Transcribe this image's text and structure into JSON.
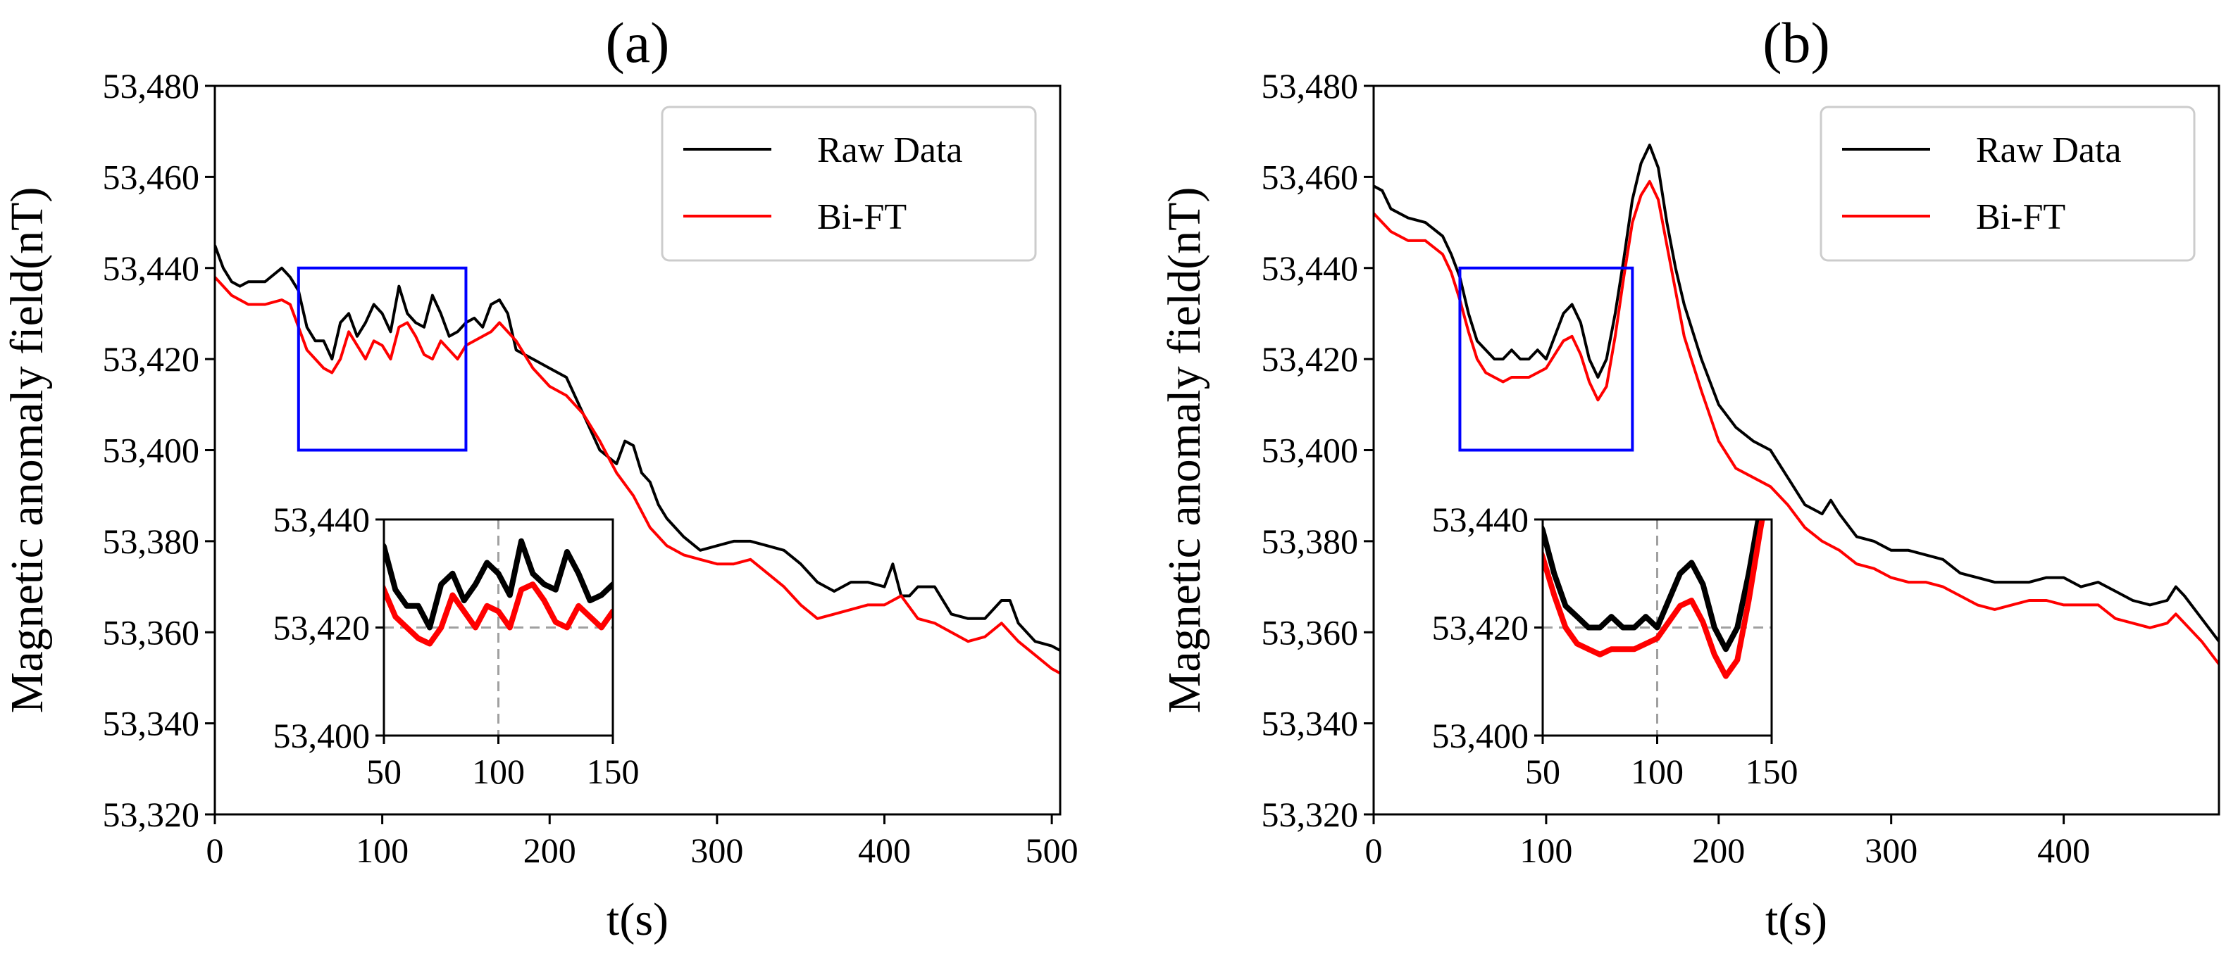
{
  "figure": {
    "description_free": true
  },
  "chart_data": [
    {
      "type": "line",
      "panel_label": "(a)",
      "xlabel": "t(s)",
      "ylabel": "Magnetic anomaly field(nT)",
      "xlim": [
        0,
        505
      ],
      "ylim": [
        53320,
        53480
      ],
      "xticks": [
        0,
        100,
        200,
        300,
        400,
        500
      ],
      "yticks": [
        53320,
        53340,
        53360,
        53380,
        53400,
        53420,
        53440,
        53460,
        53480
      ],
      "ytick_labels": [
        "53,320",
        "53,340",
        "53,360",
        "53,380",
        "53,400",
        "53,420",
        "53,440",
        "53,460",
        "53,480"
      ],
      "legend": {
        "position": "top-right",
        "entries": [
          "Raw Data",
          "Bi-FT"
        ]
      },
      "colors": {
        "raw": "#000000",
        "filtered": "#ff0000",
        "zoom_box": "#0000ff",
        "inset_grid": "#a0a0a0"
      },
      "series": [
        {
          "name": "Raw Data",
          "x": [
            0,
            5,
            10,
            15,
            20,
            30,
            40,
            45,
            50,
            55,
            60,
            65,
            70,
            75,
            80,
            85,
            90,
            95,
            100,
            105,
            110,
            115,
            120,
            125,
            130,
            135,
            140,
            145,
            150,
            155,
            160,
            165,
            170,
            175,
            180,
            190,
            200,
            210,
            220,
            230,
            240,
            245,
            250,
            255,
            260,
            265,
            270,
            280,
            290,
            300,
            310,
            320,
            330,
            340,
            350,
            360,
            370,
            380,
            390,
            400,
            405,
            410,
            415,
            420,
            430,
            440,
            450,
            460,
            470,
            475,
            480,
            490,
            500,
            505
          ],
          "values": [
            53445,
            53440,
            53437,
            53436,
            53437,
            53437,
            53440,
            53438,
            53435,
            53427,
            53424,
            53424,
            53420,
            53428,
            53430,
            53425,
            53428,
            53432,
            53430,
            53426,
            53436,
            53430,
            53428,
            53427,
            53434,
            53430,
            53425,
            53426,
            53428,
            53429,
            53427,
            53432,
            53433,
            53430,
            53422,
            53420,
            53418,
            53416,
            53408,
            53400,
            53397,
            53402,
            53401,
            53395,
            53393,
            53388,
            53385,
            53381,
            53378,
            53379,
            53380,
            53380,
            53379,
            53378,
            53375,
            53371,
            53369,
            53371,
            53371,
            53370,
            53375,
            53368,
            53368,
            53370,
            53370,
            53364,
            53363,
            53363,
            53367,
            53367,
            53362,
            53358,
            53357,
            53356
          ]
        },
        {
          "name": "Bi-FT",
          "x": [
            0,
            10,
            20,
            30,
            40,
            45,
            50,
            55,
            60,
            65,
            70,
            75,
            80,
            85,
            90,
            95,
            100,
            105,
            110,
            115,
            120,
            125,
            130,
            135,
            140,
            145,
            150,
            155,
            160,
            165,
            170,
            180,
            190,
            200,
            210,
            220,
            230,
            240,
            250,
            260,
            270,
            280,
            290,
            300,
            310,
            320,
            330,
            340,
            350,
            360,
            370,
            380,
            390,
            400,
            410,
            420,
            430,
            440,
            450,
            460,
            470,
            480,
            490,
            500,
            505
          ],
          "values": [
            53438,
            53434,
            53432,
            53432,
            53433,
            53432,
            53427,
            53422,
            53420,
            53418,
            53417,
            53420,
            53426,
            53423,
            53420,
            53424,
            53423,
            53420,
            53427,
            53428,
            53425,
            53421,
            53420,
            53424,
            53422,
            53420,
            53423,
            53424,
            53425,
            53426,
            53428,
            53424,
            53418,
            53414,
            53412,
            53408,
            53402,
            53395,
            53390,
            53383,
            53379,
            53377,
            53376,
            53375,
            53375,
            53376,
            53373,
            53370,
            53366,
            53363,
            53364,
            53365,
            53366,
            53366,
            53368,
            53363,
            53362,
            53360,
            53358,
            53359,
            53362,
            53358,
            53355,
            53352,
            53351
          ]
        }
      ],
      "zoom_box": {
        "x_range": [
          50,
          150
        ],
        "y_range": [
          53400,
          53440
        ]
      },
      "inset": {
        "xlim": [
          50,
          150
        ],
        "ylim": [
          53400,
          53440
        ],
        "xticks": [
          50,
          100,
          150
        ],
        "yticks": [
          53400,
          53420,
          53440
        ],
        "ytick_labels": [
          "53,400",
          "53,420",
          "53,440"
        ],
        "reference_lines": {
          "x": 100,
          "y": 53420
        }
      }
    },
    {
      "type": "line",
      "panel_label": "(b)",
      "xlabel": "t(s)",
      "ylabel": "Magnetic anomaly field(nT)",
      "xlim": [
        0,
        490
      ],
      "ylim": [
        53320,
        53480
      ],
      "xticks": [
        0,
        100,
        200,
        300,
        400
      ],
      "yticks": [
        53320,
        53340,
        53360,
        53380,
        53400,
        53420,
        53440,
        53460,
        53480
      ],
      "ytick_labels": [
        "53,320",
        "53,340",
        "53,360",
        "53,380",
        "53,400",
        "53,420",
        "53,440",
        "53,460",
        "53,480"
      ],
      "legend": {
        "position": "top-right",
        "entries": [
          "Raw Data",
          "Bi-FT"
        ]
      },
      "colors": {
        "raw": "#000000",
        "filtered": "#ff0000",
        "zoom_box": "#0000ff",
        "inset_grid": "#a0a0a0"
      },
      "series": [
        {
          "name": "Raw Data",
          "x": [
            0,
            5,
            10,
            20,
            30,
            40,
            45,
            50,
            55,
            60,
            65,
            70,
            75,
            80,
            85,
            90,
            95,
            100,
            105,
            110,
            115,
            120,
            125,
            130,
            135,
            140,
            145,
            150,
            155,
            160,
            165,
            170,
            175,
            180,
            190,
            200,
            210,
            220,
            230,
            240,
            250,
            260,
            265,
            270,
            280,
            290,
            300,
            310,
            320,
            330,
            340,
            350,
            360,
            370,
            380,
            390,
            400,
            410,
            420,
            430,
            440,
            450,
            460,
            465,
            470,
            480,
            490
          ],
          "values": [
            53458,
            53457,
            53453,
            53451,
            53450,
            53447,
            53443,
            53438,
            53430,
            53424,
            53422,
            53420,
            53420,
            53422,
            53420,
            53420,
            53422,
            53420,
            53425,
            53430,
            53432,
            53428,
            53420,
            53416,
            53420,
            53430,
            53442,
            53455,
            53463,
            53467,
            53462,
            53450,
            53440,
            53432,
            53420,
            53410,
            53405,
            53402,
            53400,
            53394,
            53388,
            53386,
            53389,
            53386,
            53381,
            53380,
            53378,
            53378,
            53377,
            53376,
            53373,
            53372,
            53371,
            53371,
            53371,
            53372,
            53372,
            53370,
            53371,
            53369,
            53367,
            53366,
            53367,
            53370,
            53368,
            53363,
            53358
          ]
        },
        {
          "name": "Bi-FT",
          "x": [
            0,
            10,
            20,
            30,
            40,
            45,
            50,
            55,
            60,
            65,
            70,
            75,
            80,
            90,
            100,
            105,
            110,
            115,
            120,
            125,
            130,
            135,
            140,
            145,
            150,
            155,
            160,
            165,
            170,
            175,
            180,
            190,
            200,
            210,
            220,
            230,
            240,
            250,
            260,
            270,
            280,
            290,
            300,
            310,
            320,
            330,
            340,
            350,
            360,
            370,
            380,
            390,
            400,
            410,
            420,
            430,
            440,
            450,
            460,
            465,
            470,
            480,
            490
          ],
          "values": [
            53452,
            53448,
            53446,
            53446,
            53443,
            53439,
            53433,
            53426,
            53420,
            53417,
            53416,
            53415,
            53416,
            53416,
            53418,
            53421,
            53424,
            53425,
            53421,
            53415,
            53411,
            53414,
            53425,
            53438,
            53450,
            53456,
            53459,
            53455,
            53445,
            53435,
            53425,
            53413,
            53402,
            53396,
            53394,
            53392,
            53388,
            53383,
            53380,
            53378,
            53375,
            53374,
            53372,
            53371,
            53371,
            53370,
            53368,
            53366,
            53365,
            53366,
            53367,
            53367,
            53366,
            53366,
            53366,
            53363,
            53362,
            53361,
            53362,
            53364,
            53362,
            53358,
            53353
          ]
        }
      ],
      "zoom_box": {
        "x_range": [
          50,
          150
        ],
        "y_range": [
          53400,
          53440
        ]
      },
      "inset": {
        "xlim": [
          50,
          150
        ],
        "ylim": [
          53400,
          53440
        ],
        "xticks": [
          50,
          100,
          150
        ],
        "yticks": [
          53400,
          53420,
          53440
        ],
        "ytick_labels": [
          "53,400",
          "53,420",
          "53,440"
        ],
        "reference_lines": {
          "x": 100,
          "y": 53420
        }
      }
    }
  ]
}
